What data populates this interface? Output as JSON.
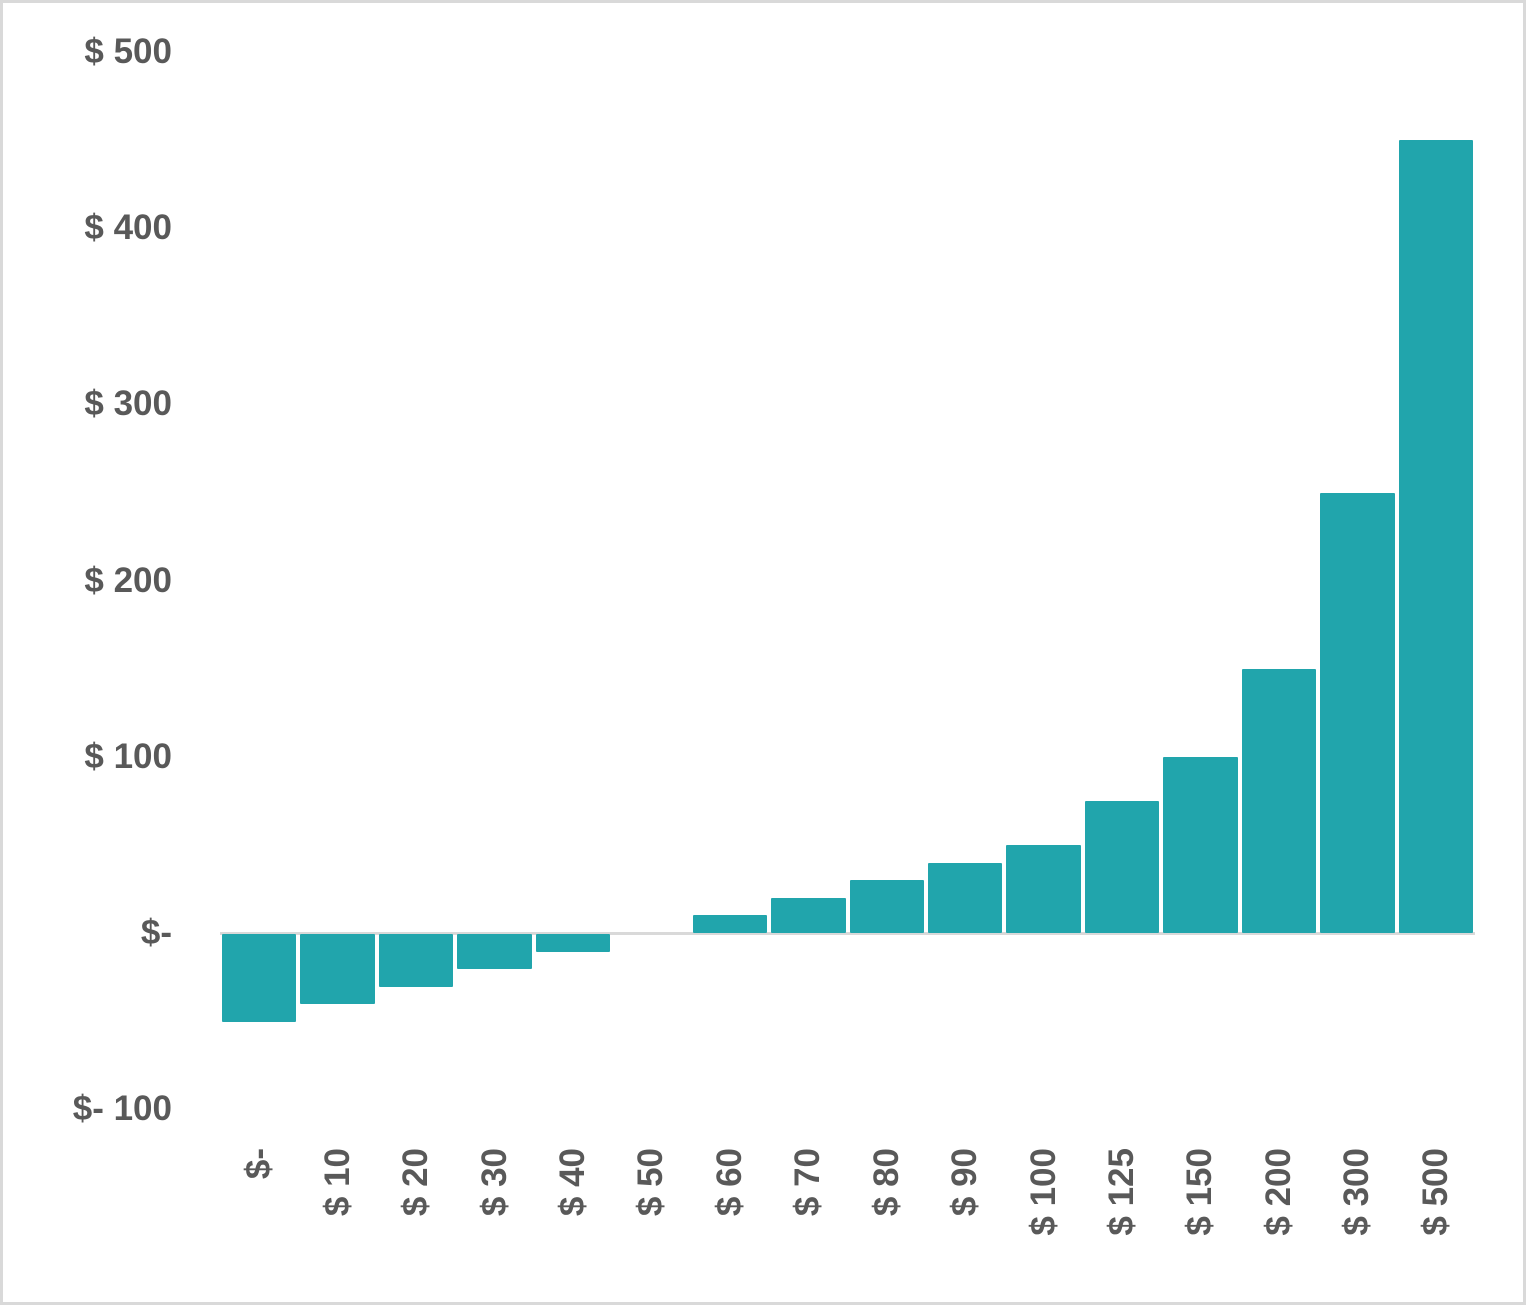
{
  "chart_data": {
    "type": "bar",
    "title": "",
    "xlabel": "",
    "ylabel": "",
    "categories": [
      "$-",
      "$ 10",
      "$ 20",
      "$ 30",
      "$ 40",
      "$ 50",
      "$ 60",
      "$ 70",
      "$ 80",
      "$ 90",
      "$ 100",
      "$ 125",
      "$ 150",
      "$ 200",
      "$ 300",
      "$ 500"
    ],
    "values": [
      -50,
      -40,
      -30,
      -20,
      -10,
      0,
      10,
      20,
      30,
      40,
      50,
      75,
      100,
      150,
      250,
      450
    ],
    "ylim": [
      -100,
      500
    ],
    "yticks": [
      500,
      400,
      300,
      200,
      100,
      0,
      -100
    ],
    "ytick_labels": [
      "$ 500",
      "$ 400",
      "$ 300",
      "$ 200",
      "$ 100",
      "$-",
      "$- 100"
    ],
    "grid": false,
    "legend": null,
    "bar_color": "#21a5ac",
    "axis_color": "#d9d9d9",
    "label_color": "#595959"
  }
}
